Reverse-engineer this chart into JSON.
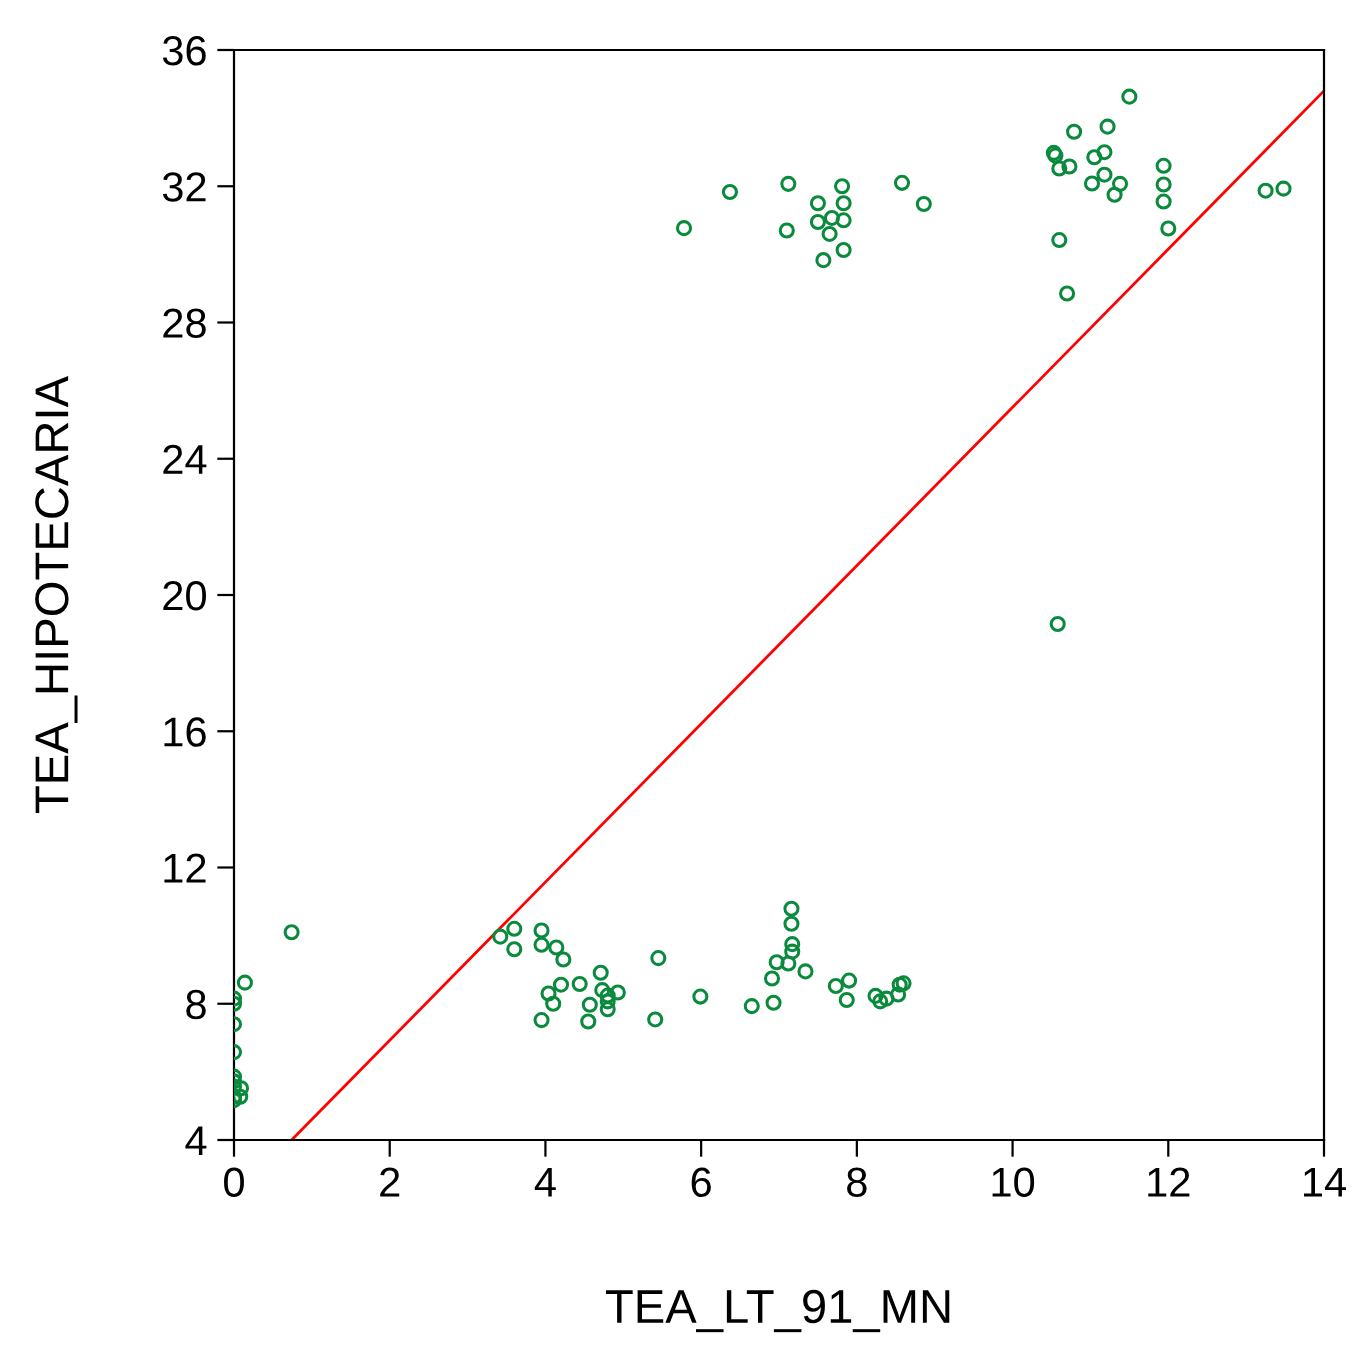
{
  "chart_data": {
    "type": "scatter",
    "xlabel": "TEA_LT_91_MN",
    "ylabel": "TEA_HIPOTECARIA",
    "xlim": [
      0,
      14
    ],
    "xticks": [
      0,
      2,
      4,
      6,
      8,
      10,
      12,
      14
    ],
    "ylim": [
      4,
      36
    ],
    "yticks": [
      4,
      8,
      12,
      16,
      20,
      24,
      28,
      32,
      36
    ],
    "grid": false,
    "legend": false,
    "series": [
      {
        "color": "#0a8a3c",
        "marker": "circle",
        "x": [
          5.78,
          6.37,
          7.12,
          7.1,
          7.5,
          7.5,
          7.65,
          7.68,
          7.81,
          7.83,
          7.83,
          7.83,
          7.57,
          8.58,
          8.86,
          11.5,
          10.79,
          11.22,
          10.53,
          10.55,
          10.6,
          10.73,
          11.05,
          11.18,
          11.02,
          11.18,
          11.38,
          11.31,
          11.94,
          11.94,
          11.94,
          12.0,
          10.6,
          10.7,
          13.25,
          13.48,
          10.58,
          0.74,
          0.14,
          0,
          0,
          0,
          0,
          0,
          0,
          0,
          0,
          0,
          0.09,
          0.08,
          3.42,
          3.6,
          3.6,
          3.95,
          3.95,
          4.14,
          4.23,
          4.71,
          4.44,
          4.2,
          4.04,
          4.1,
          3.95,
          4.57,
          4.55,
          4.73,
          4.8,
          4.8,
          4.8,
          4.93,
          5.45,
          5.41,
          5.99,
          6.65,
          6.93,
          6.91,
          6.97,
          7.16,
          7.16,
          7.17,
          7.17,
          7.12,
          7.34,
          7.73,
          7.9,
          7.87,
          8.24,
          8.3,
          8.38,
          8.53,
          8.55,
          8.6
        ],
        "values": [
          30.77,
          31.83,
          32.07,
          30.7,
          31.5,
          30.95,
          30.6,
          31.07,
          32.0,
          31.5,
          31.0,
          30.13,
          29.83,
          32.1,
          31.48,
          34.63,
          33.6,
          33.75,
          32.98,
          32.9,
          32.52,
          32.58,
          32.85,
          33.0,
          32.08,
          32.34,
          32.07,
          31.75,
          32.6,
          32.05,
          31.55,
          30.76,
          30.42,
          28.85,
          31.87,
          31.93,
          19.15,
          10.1,
          8.62,
          8.15,
          8.0,
          7.4,
          6.58,
          5.86,
          5.72,
          5.57,
          5.27,
          5.17,
          5.52,
          5.27,
          9.97,
          10.2,
          9.6,
          10.15,
          9.73,
          9.65,
          9.3,
          8.91,
          8.58,
          8.56,
          8.3,
          8.0,
          7.52,
          7.97,
          7.48,
          8.4,
          8.24,
          8.07,
          7.84,
          8.33,
          9.34,
          7.54,
          8.21,
          7.93,
          8.03,
          8.74,
          9.22,
          10.79,
          10.35,
          9.75,
          9.53,
          9.18,
          8.95,
          8.52,
          8.68,
          8.11,
          8.23,
          8.07,
          8.15,
          8.27,
          8.56,
          8.6
        ]
      },
      {
        "type": "line",
        "color": "#ff0000",
        "marker": "none",
        "line_style": "solid",
        "x": [
          0.74,
          14
        ],
        "values": [
          4,
          34.8
        ]
      }
    ]
  }
}
